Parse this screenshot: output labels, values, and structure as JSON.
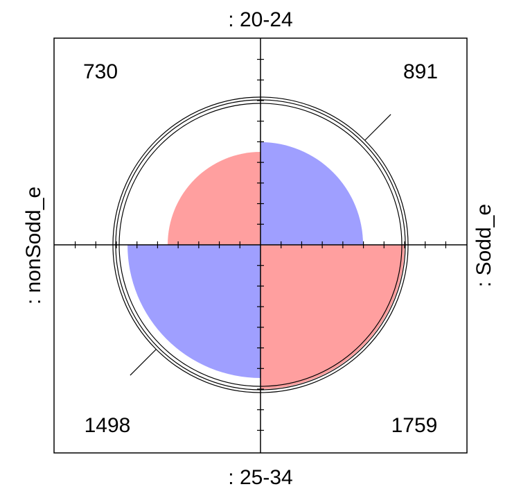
{
  "chart_data": {
    "type": "fourfold",
    "labels": {
      "top": ": 20-24",
      "bottom": ": 25-34",
      "left": ": nonSodd_e",
      "right": ": Sodd_e"
    },
    "cells": [
      {
        "quadrant": "top-left",
        "value": 730,
        "color": "#ff9f9f"
      },
      {
        "quadrant": "top-right",
        "value": 891,
        "color": "#9f9fff"
      },
      {
        "quadrant": "bottom-left",
        "value": 1498,
        "color": "#9f9fff"
      },
      {
        "quadrant": "bottom-right",
        "value": 1759,
        "color": "#ff9f9f"
      }
    ],
    "confidence_rings": 2,
    "odds_ratio_line": "top-right to bottom-left",
    "ticks": true
  }
}
